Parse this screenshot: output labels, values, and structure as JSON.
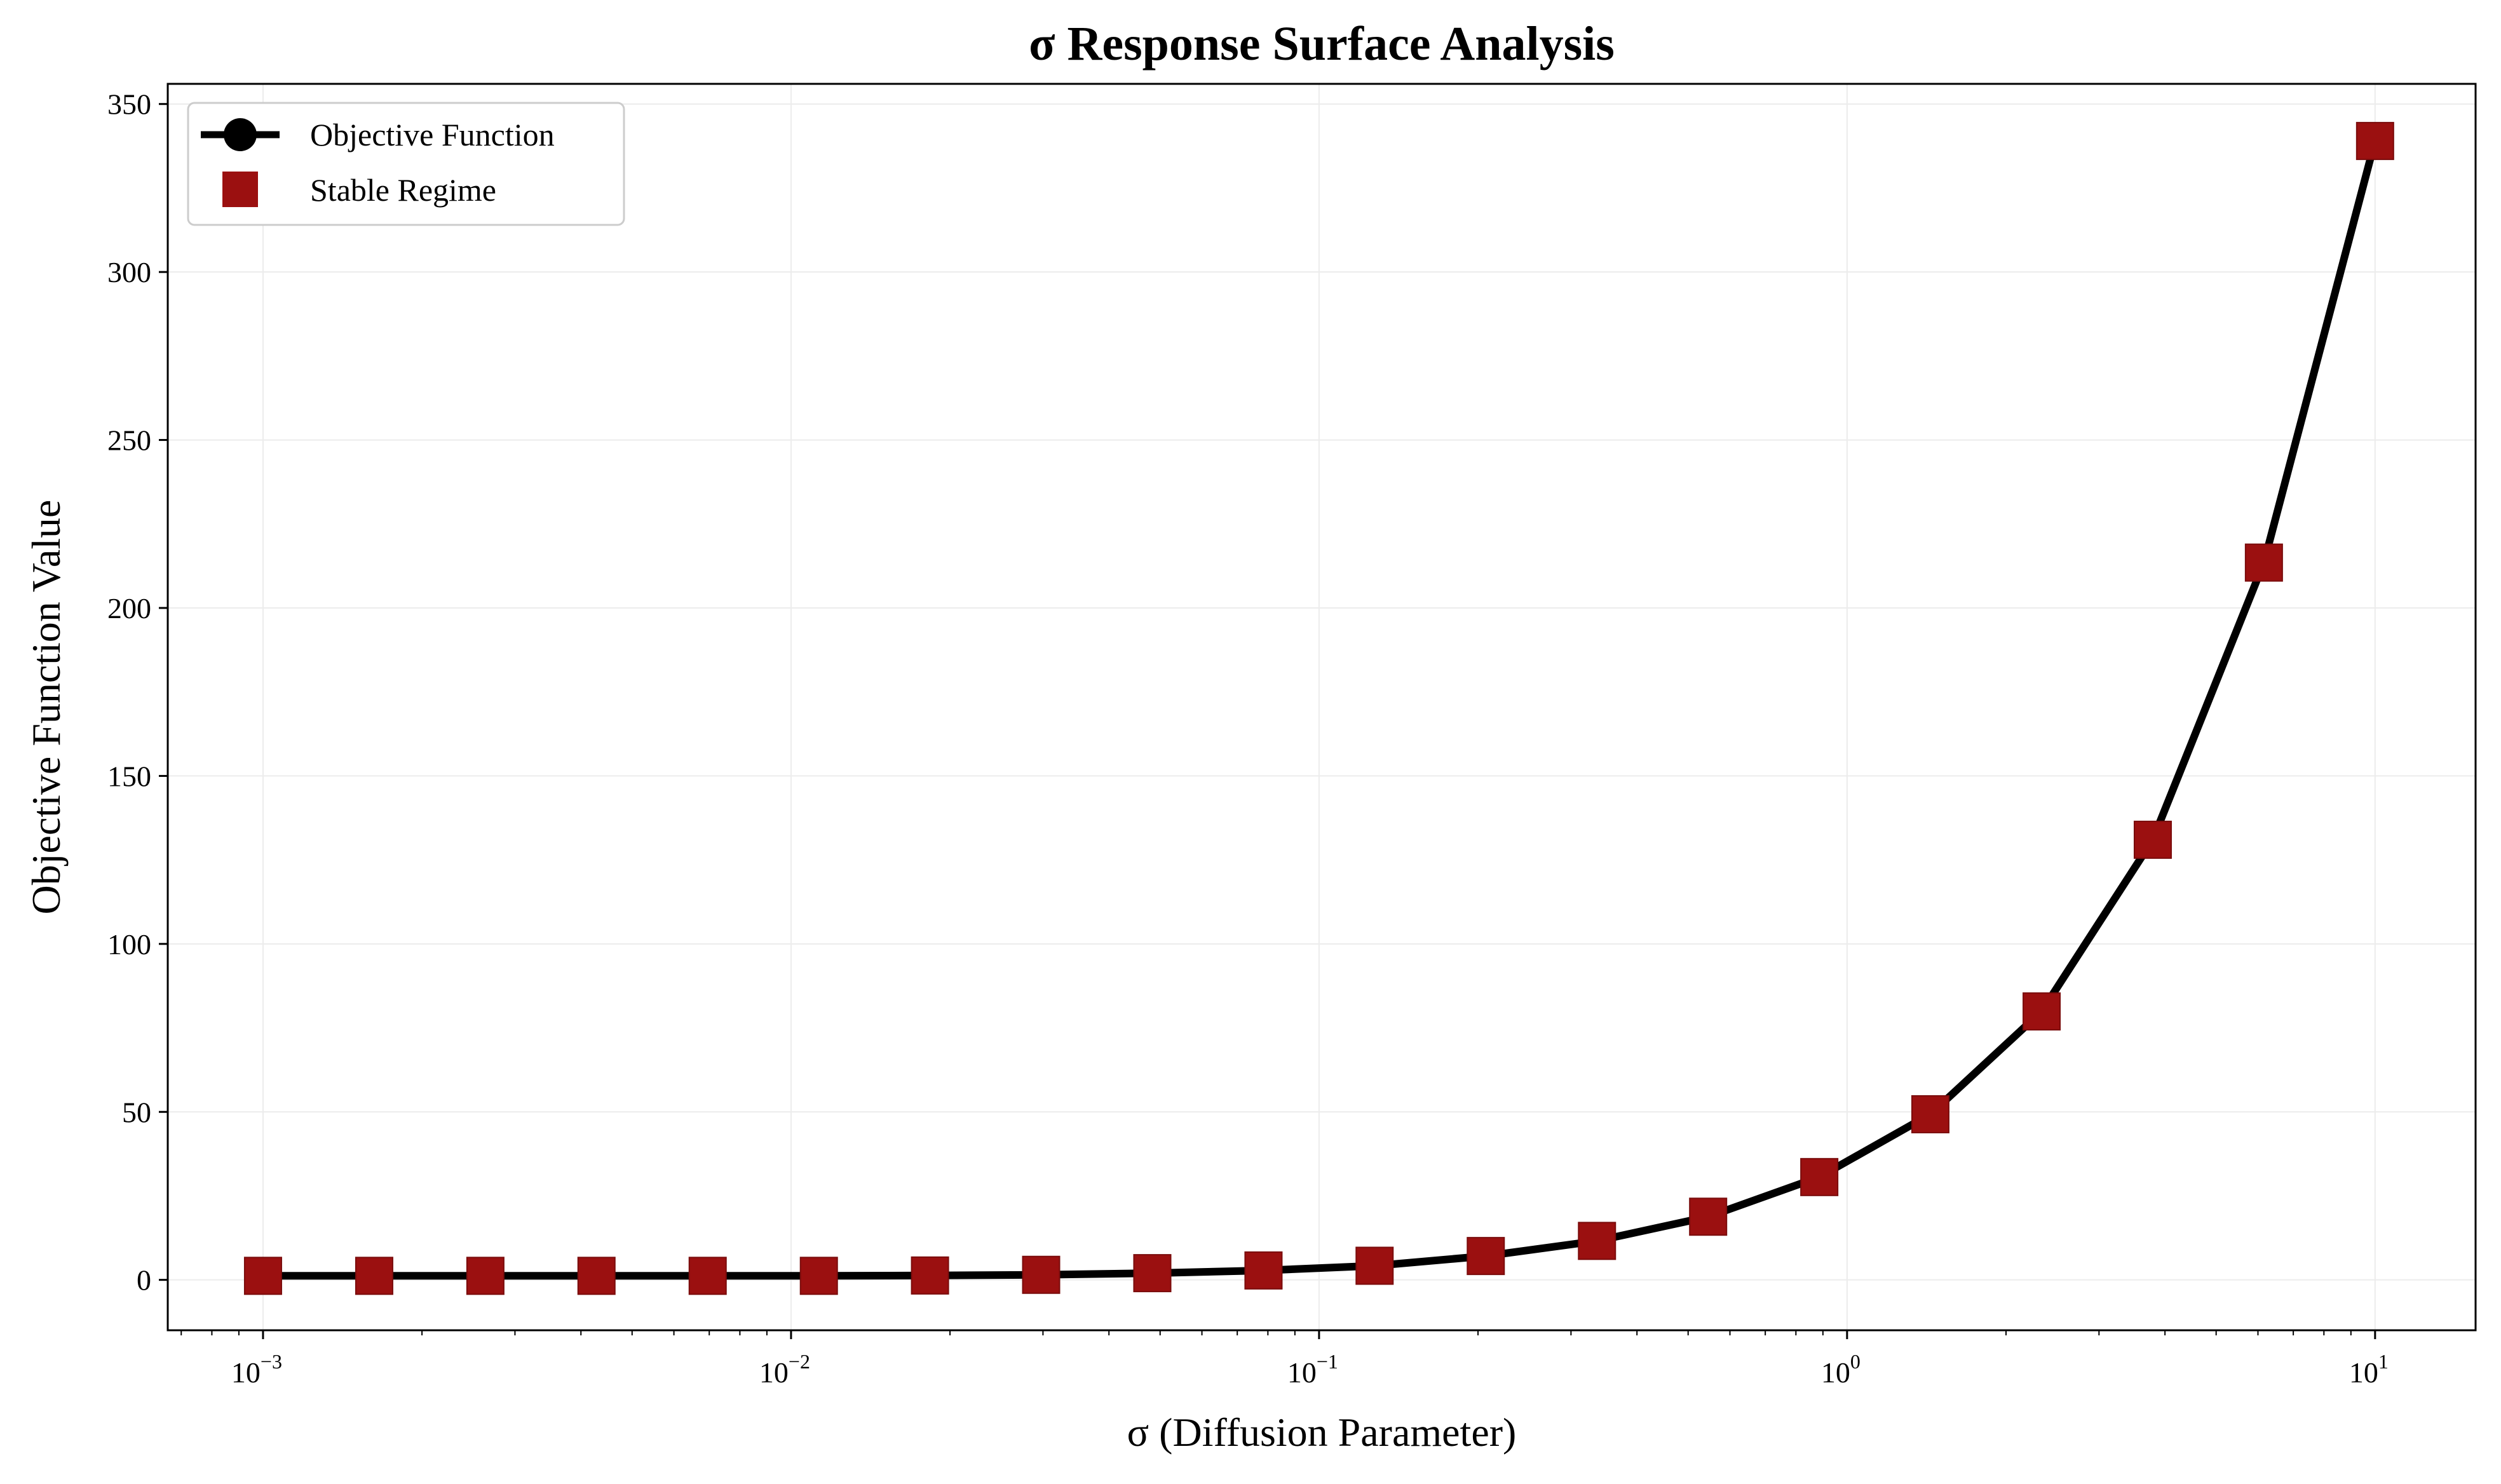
{
  "chart_data": {
    "type": "line",
    "title": "σ Response Surface Analysis",
    "xlabel": "σ (Diffusion Parameter)",
    "ylabel": "Objective Function Value",
    "x_scale": "log",
    "xlim": [
      0.00066,
      15.5
    ],
    "ylim": [
      -15,
      356
    ],
    "x_ticks": [
      {
        "value": 0.001,
        "base": "10",
        "exp": "−3"
      },
      {
        "value": 0.01,
        "base": "10",
        "exp": "−2"
      },
      {
        "value": 0.1,
        "base": "10",
        "exp": "−1"
      },
      {
        "value": 1,
        "base": "10",
        "exp": "0"
      },
      {
        "value": 10,
        "base": "10",
        "exp": "1"
      }
    ],
    "y_ticks": [
      0,
      50,
      100,
      150,
      200,
      250,
      300,
      350
    ],
    "grid": true,
    "legend_position": "top-left",
    "colors": {
      "line": "#000000",
      "marker": "#9b1010",
      "grid": "#ececec"
    },
    "series": [
      {
        "name": "Objective Function",
        "style": "line-with-circle-markers",
        "x": [
          0.001,
          0.001624,
          0.002637,
          0.004281,
          0.006952,
          0.01129,
          0.01833,
          0.02976,
          0.04833,
          0.07848,
          0.1274,
          0.2069,
          0.336,
          0.5456,
          0.8859,
          1.438,
          2.336,
          3.793,
          6.158,
          10.0
        ],
        "y": [
          1.2,
          1.2,
          1.2,
          1.2,
          1.2,
          1.2,
          1.3,
          1.5,
          2.0,
          2.8,
          4.2,
          7.1,
          11.6,
          18.8,
          30.6,
          49.3,
          79.9,
          131.0,
          213.5,
          339.0
        ]
      },
      {
        "name": "Stable Regime",
        "style": "square-markers",
        "x": [
          0.001,
          0.001624,
          0.002637,
          0.004281,
          0.006952,
          0.01129,
          0.01833,
          0.02976,
          0.04833,
          0.07848,
          0.1274,
          0.2069,
          0.336,
          0.5456,
          0.8859,
          1.438,
          2.336,
          3.793,
          6.158,
          10.0
        ],
        "y": [
          1.2,
          1.2,
          1.2,
          1.2,
          1.2,
          1.2,
          1.3,
          1.5,
          2.0,
          2.8,
          4.2,
          7.1,
          11.6,
          18.8,
          30.6,
          49.3,
          79.9,
          131.0,
          213.5,
          339.0
        ]
      }
    ]
  }
}
